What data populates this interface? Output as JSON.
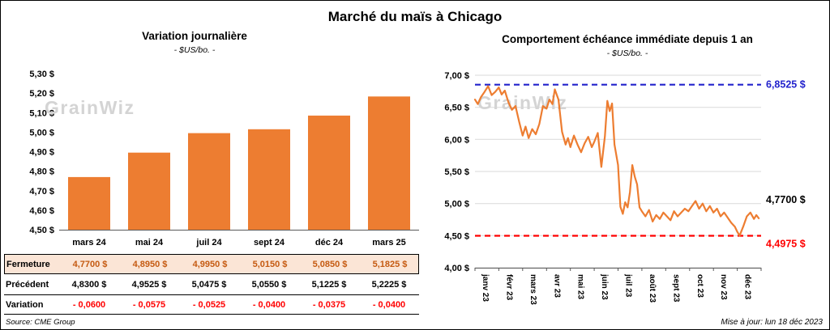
{
  "page_title": "Marché du maïs à Chicago",
  "watermark": "GrainWiz",
  "source": "Source: CME Group",
  "updated": "Mise à jour: lun 18 déc 2023",
  "colors": {
    "bar": "#ED7D31",
    "line": "#ED7D31",
    "high": "#2222CC",
    "low": "#FF0000",
    "fermeture_bg": "#FBE5D6",
    "fermeture_text": "#C55A11",
    "variation_text": "#FF0000",
    "grid": "#D9D9D9",
    "axis": "#595959",
    "watermark": "#D4D4D4"
  },
  "chart_data": [
    {
      "type": "bar",
      "title": "Variation journalière",
      "subtitle": "- $US/bo. -",
      "categories": [
        "mars 24",
        "mai 24",
        "juil 24",
        "sept 24",
        "déc 24",
        "mars 25"
      ],
      "values": [
        4.77,
        4.895,
        4.995,
        5.015,
        5.085,
        5.1825
      ],
      "ylim": [
        4.5,
        5.3
      ],
      "ytick_step": 0.1,
      "ytick_labels": [
        "4,50 $",
        "4,60 $",
        "4,70 $",
        "4,80 $",
        "4,90 $",
        "5,00 $",
        "5,10 $",
        "5,20 $",
        "5,30 $"
      ],
      "grid": false,
      "legend": "none"
    },
    {
      "type": "line",
      "title": "Comportement échéance immédiate depuis 1 an",
      "subtitle": "- $US/bo. -",
      "x_labels": [
        "janv 23",
        "févr 23",
        "mars 23",
        "avr 23",
        "mai 23",
        "juin 23",
        "juil 23",
        "août 23",
        "sept 23",
        "oct 23",
        "nov 23",
        "déc 23"
      ],
      "ylim": [
        4.0,
        7.0
      ],
      "ytick_step": 0.5,
      "ytick_labels": [
        "4,00 $",
        "4,50 $",
        "5,00 $",
        "5,50 $",
        "6,00 $",
        "6,50 $",
        "7,00 $"
      ],
      "grid": true,
      "legend": "none",
      "high_value": 6.8525,
      "high_label": "6,8525 $",
      "low_value": 4.4975,
      "low_label": "4,4975 $",
      "last_value": 4.77,
      "last_label": "4,7700 $",
      "points": [
        [
          0.0,
          6.62
        ],
        [
          0.12,
          6.55
        ],
        [
          0.25,
          6.66
        ],
        [
          0.4,
          6.74
        ],
        [
          0.55,
          6.83
        ],
        [
          0.7,
          6.69
        ],
        [
          0.85,
          6.74
        ],
        [
          1.0,
          6.81
        ],
        [
          1.12,
          6.7
        ],
        [
          1.25,
          6.76
        ],
        [
          1.4,
          6.58
        ],
        [
          1.55,
          6.46
        ],
        [
          1.7,
          6.52
        ],
        [
          1.85,
          6.28
        ],
        [
          2.0,
          6.06
        ],
        [
          2.12,
          6.2
        ],
        [
          2.25,
          6.02
        ],
        [
          2.4,
          6.16
        ],
        [
          2.55,
          6.08
        ],
        [
          2.7,
          6.24
        ],
        [
          2.85,
          6.52
        ],
        [
          3.0,
          6.48
        ],
        [
          3.12,
          6.62
        ],
        [
          3.25,
          6.55
        ],
        [
          3.35,
          6.78
        ],
        [
          3.5,
          6.62
        ],
        [
          3.65,
          6.12
        ],
        [
          3.8,
          5.92
        ],
        [
          3.9,
          6.02
        ],
        [
          4.0,
          5.88
        ],
        [
          4.15,
          6.06
        ],
        [
          4.3,
          5.92
        ],
        [
          4.45,
          5.8
        ],
        [
          4.6,
          5.94
        ],
        [
          4.75,
          6.04
        ],
        [
          4.9,
          5.88
        ],
        [
          5.0,
          5.96
        ],
        [
          5.15,
          6.1
        ],
        [
          5.3,
          5.57
        ],
        [
          5.45,
          6.05
        ],
        [
          5.55,
          6.6
        ],
        [
          5.65,
          6.44
        ],
        [
          5.75,
          6.56
        ],
        [
          5.85,
          5.92
        ],
        [
          6.0,
          5.6
        ],
        [
          6.1,
          4.95
        ],
        [
          6.2,
          4.84
        ],
        [
          6.3,
          5.02
        ],
        [
          6.4,
          4.94
        ],
        [
          6.5,
          5.18
        ],
        [
          6.6,
          5.6
        ],
        [
          6.7,
          5.42
        ],
        [
          6.8,
          5.3
        ],
        [
          6.9,
          4.94
        ],
        [
          7.0,
          4.88
        ],
        [
          7.15,
          4.8
        ],
        [
          7.3,
          4.9
        ],
        [
          7.45,
          4.72
        ],
        [
          7.6,
          4.82
        ],
        [
          7.75,
          4.76
        ],
        [
          7.9,
          4.86
        ],
        [
          8.05,
          4.8
        ],
        [
          8.2,
          4.74
        ],
        [
          8.35,
          4.88
        ],
        [
          8.5,
          4.8
        ],
        [
          8.65,
          4.86
        ],
        [
          8.8,
          4.92
        ],
        [
          8.95,
          4.88
        ],
        [
          9.1,
          4.96
        ],
        [
          9.25,
          5.04
        ],
        [
          9.4,
          4.92
        ],
        [
          9.55,
          5.0
        ],
        [
          9.7,
          4.88
        ],
        [
          9.85,
          4.96
        ],
        [
          10.0,
          4.86
        ],
        [
          10.15,
          4.92
        ],
        [
          10.3,
          4.8
        ],
        [
          10.45,
          4.86
        ],
        [
          10.6,
          4.78
        ],
        [
          10.75,
          4.7
        ],
        [
          10.9,
          4.64
        ],
        [
          11.0,
          4.56
        ],
        [
          11.1,
          4.5
        ],
        [
          11.25,
          4.64
        ],
        [
          11.4,
          4.8
        ],
        [
          11.55,
          4.86
        ],
        [
          11.7,
          4.76
        ],
        [
          11.8,
          4.82
        ],
        [
          11.9,
          4.77
        ]
      ]
    }
  ],
  "table": {
    "headers": [
      "mars 24",
      "mai 24",
      "juil 24",
      "sept 24",
      "déc 24",
      "mars 25"
    ],
    "rows": [
      {
        "label": "Fermeture",
        "values": [
          "4,7700 $",
          "4,8950 $",
          "4,9950 $",
          "5,0150 $",
          "5,0850 $",
          "5,1825 $"
        ]
      },
      {
        "label": "Précédent",
        "values": [
          "4,8300 $",
          "4,9525 $",
          "5,0475 $",
          "5,0550 $",
          "5,1225 $",
          "5,2225 $"
        ]
      },
      {
        "label": "Variation",
        "values": [
          "- 0,0600",
          "- 0,0575",
          "- 0,0525",
          "- 0,0400",
          "- 0,0375",
          "- 0,0400"
        ]
      }
    ]
  }
}
